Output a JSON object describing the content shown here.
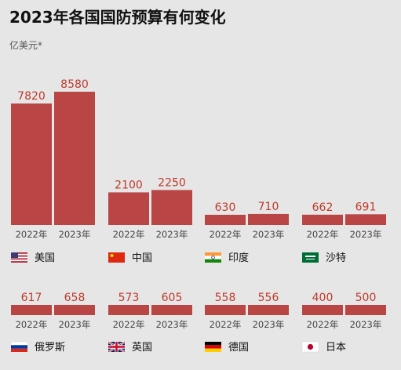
{
  "title": "2023年各国国防预算有何变化",
  "unit": "亿美元*",
  "chart_data": {
    "type": "bar",
    "title": "2023年各国国防预算有何变化",
    "ylabel": "亿美元*",
    "categories": [
      "2022年",
      "2023年"
    ],
    "series": [
      {
        "name": "美国",
        "flag": "us-flag-icon",
        "values": [
          7820,
          8580
        ]
      },
      {
        "name": "中国",
        "flag": "china-flag-icon",
        "values": [
          2100,
          2250
        ]
      },
      {
        "name": "印度",
        "flag": "india-flag-icon",
        "values": [
          630,
          710
        ]
      },
      {
        "name": "沙特",
        "flag": "saudi-flag-icon",
        "values": [
          662,
          691
        ]
      },
      {
        "name": "俄罗斯",
        "flag": "russia-flag-icon",
        "values": [
          617,
          658
        ]
      },
      {
        "name": "英国",
        "flag": "uk-flag-icon",
        "values": [
          573,
          605
        ]
      },
      {
        "name": "德国",
        "flag": "germany-flag-icon",
        "values": [
          558,
          556
        ]
      },
      {
        "name": "日本",
        "flag": "japan-flag-icon",
        "values": [
          400,
          500
        ]
      }
    ],
    "bar_color": "#b94545",
    "label_color": "#c0392b"
  }
}
